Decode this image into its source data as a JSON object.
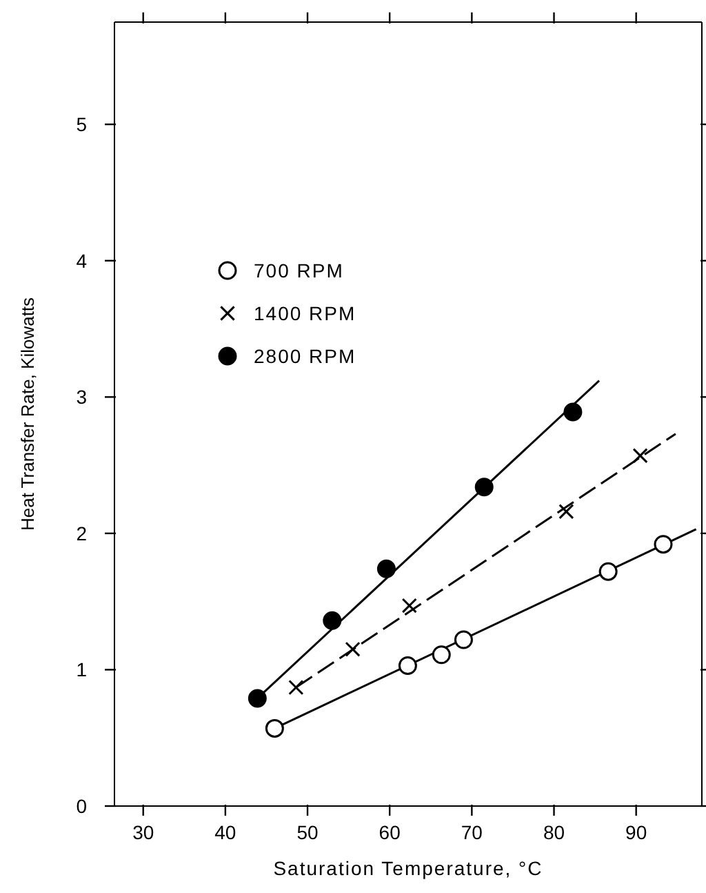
{
  "chart_data": {
    "type": "scatter",
    "xlabel": "Saturation Temperature, °C",
    "ylabel": "Heat Transfer Rate, Kilowatts",
    "xlim": [
      26.5,
      98
    ],
    "xticks": [
      30,
      40,
      50,
      60,
      70,
      80,
      90
    ],
    "ylim": [
      0,
      5.75
    ],
    "yticks": [
      0,
      1,
      2,
      3,
      4,
      5
    ],
    "legend": "top left",
    "series": [
      {
        "name": "700 RPM",
        "marker": "circle",
        "color": "#ffffff",
        "x": [
          46.0,
          62.2,
          66.3,
          69.0,
          86.6,
          93.3
        ],
        "values": [
          0.57,
          1.03,
          1.11,
          1.22,
          1.72,
          1.92
        ]
      },
      {
        "name": "1400 RPM",
        "marker": "cross",
        "color": "#000000",
        "x": [
          48.6,
          55.5,
          62.4,
          81.5,
          90.5
        ],
        "values": [
          0.87,
          1.15,
          1.47,
          2.16,
          2.57
        ]
      },
      {
        "name": "2800 RPM",
        "marker": "circle",
        "color": "#000000",
        "x": [
          43.9,
          53.0,
          59.6,
          71.5,
          82.3
        ],
        "values": [
          0.79,
          1.36,
          1.74,
          2.34,
          2.89
        ]
      },
      {
        "type": "line",
        "line_style": "solid",
        "color": "#000000",
        "x": [
          46.0,
          97.3
        ],
        "values": [
          0.57,
          2.03
        ]
      },
      {
        "type": "line",
        "line_style": "dashed",
        "color": "#000000",
        "x": [
          48.6,
          94.8
        ],
        "values": [
          0.87,
          2.73
        ]
      },
      {
        "type": "line",
        "line_style": "solid",
        "color": "#000000",
        "x": [
          43.9,
          85.5
        ],
        "values": [
          0.79,
          3.12
        ]
      }
    ]
  }
}
